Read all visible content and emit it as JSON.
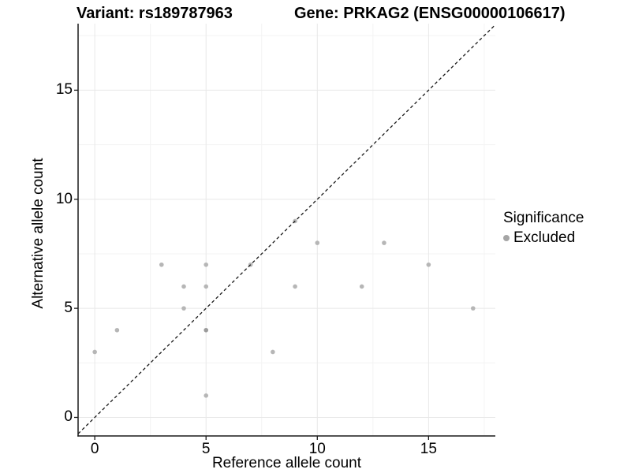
{
  "header": {
    "left_title": "Variant: rs189787963",
    "right_title": "Gene: PRKAG2 (ENSG00000106617)"
  },
  "chart_data": {
    "type": "scatter",
    "xlabel": "Reference allele count",
    "ylabel": "Alternative allele count",
    "x_ticks": [
      0,
      5,
      10,
      15
    ],
    "y_ticks": [
      0,
      5,
      10,
      15
    ],
    "x_minor_gridlines": [
      2.5,
      7.5,
      12.5,
      17.5
    ],
    "y_minor_gridlines": [
      2.5,
      7.5,
      12.5,
      17.5
    ],
    "xlim": [
      -0.75,
      18.0
    ],
    "ylim": [
      -0.85,
      18.05
    ],
    "grid": "major+minor",
    "reference_line": {
      "equation": "y = x",
      "style": "dashed",
      "color": "#1a1a1a"
    },
    "series": [
      {
        "name": "Excluded",
        "color": "#b6b6b6",
        "points": [
          [
            0,
            3
          ],
          [
            1,
            4
          ],
          [
            3,
            7
          ],
          [
            4,
            5
          ],
          [
            4,
            6
          ],
          [
            5,
            1
          ],
          [
            5,
            4
          ],
          [
            5,
            6
          ],
          [
            5,
            7
          ],
          [
            7,
            7
          ],
          [
            8,
            3
          ],
          [
            9,
            6
          ],
          [
            9,
            9
          ],
          [
            10,
            8
          ],
          [
            12,
            6
          ],
          [
            13,
            8
          ],
          [
            15,
            7
          ],
          [
            17,
            5
          ]
        ],
        "overplotted_darker_points": [
          [
            5,
            4
          ]
        ],
        "darker_color": "#9b9b9b"
      }
    ],
    "legend": {
      "title": "Significance",
      "position": "right",
      "entries": [
        {
          "label": "Excluded",
          "color": "#a5a5a5"
        }
      ]
    },
    "colors": {
      "grid_major": "#e8e8e8",
      "grid_minor": "#f3f3f3",
      "axis_line": "#1a1a1a",
      "point": "#b6b6b6"
    }
  }
}
